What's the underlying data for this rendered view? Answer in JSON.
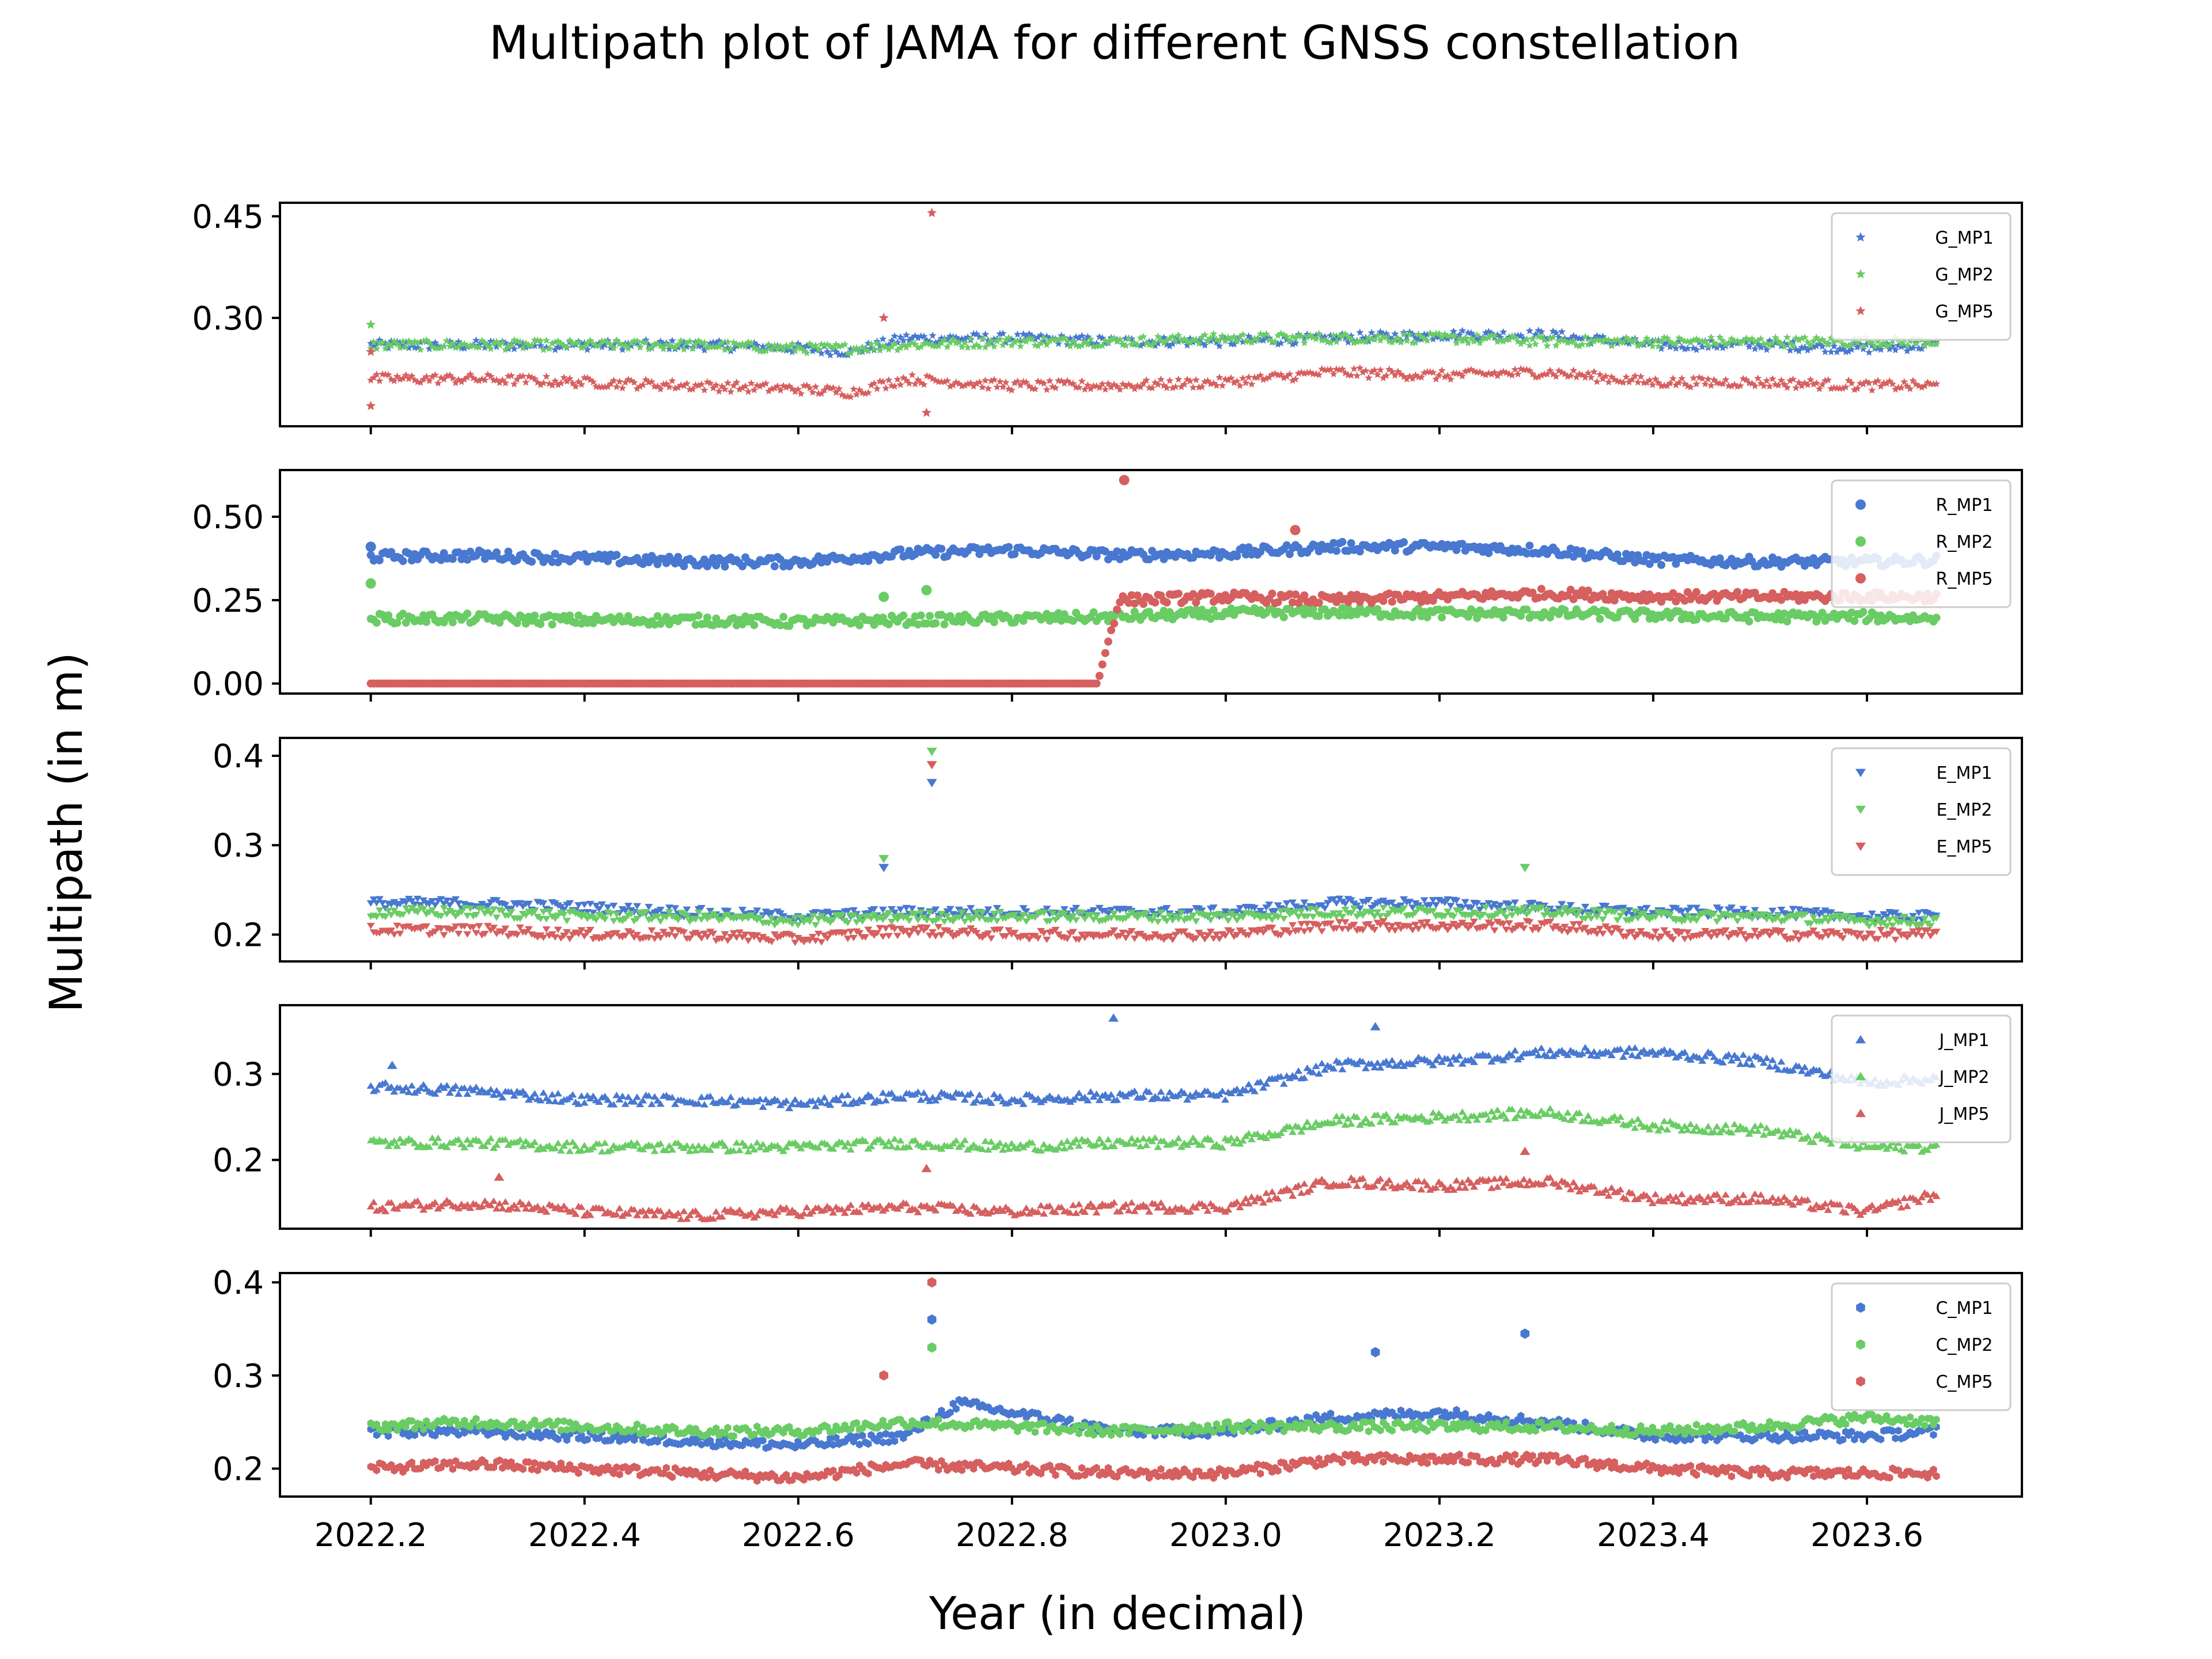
{
  "title": "Multipath plot of JAMA for different GNSS constellation",
  "xlabel": "Year (in decimal)",
  "ylabel": "Multipath (in m)",
  "xlim": [
    2022.115,
    2023.745
  ],
  "xticks": [
    "2022.2",
    "2022.4",
    "2022.6",
    "2022.8",
    "2023.0",
    "2023.2",
    "2023.4",
    "2023.6"
  ],
  "colors": {
    "MP1": "#4878d0",
    "MP2": "#6acc64",
    "MP5": "#d65f5f"
  },
  "chart_data": [
    {
      "type": "scatter",
      "marker": "star",
      "ylim": [
        0.14,
        0.47
      ],
      "yticks": [
        "0.30",
        "0.45"
      ],
      "legend_position": "top-right",
      "series": [
        {
          "name": "G_MP1",
          "color": "#4878d0",
          "x": [
            2022.2,
            2022.3,
            2022.4,
            2022.5,
            2022.6,
            2022.65,
            2022.7,
            2022.8,
            2022.9,
            2023.0,
            2023.1,
            2023.2,
            2023.3,
            2023.4,
            2023.5,
            2023.6,
            2023.665
          ],
          "y": [
            0.26,
            0.26,
            0.26,
            0.26,
            0.255,
            0.25,
            0.27,
            0.27,
            0.265,
            0.265,
            0.27,
            0.275,
            0.275,
            0.26,
            0.26,
            0.255,
            0.26
          ]
        },
        {
          "name": "G_MP2",
          "color": "#6acc64",
          "x": [
            2022.2,
            2022.3,
            2022.4,
            2022.5,
            2022.6,
            2022.65,
            2022.7,
            2022.8,
            2022.9,
            2023.0,
            2023.1,
            2023.2,
            2023.3,
            2023.4,
            2023.5,
            2023.6,
            2023.665
          ],
          "y": [
            0.26,
            0.26,
            0.26,
            0.26,
            0.255,
            0.255,
            0.26,
            0.265,
            0.265,
            0.27,
            0.27,
            0.27,
            0.265,
            0.265,
            0.265,
            0.265,
            0.265
          ]
        },
        {
          "name": "G_MP5",
          "color": "#d65f5f",
          "x": [
            2022.2,
            2022.3,
            2022.4,
            2022.5,
            2022.6,
            2022.65,
            2022.7,
            2022.8,
            2022.9,
            2023.0,
            2023.1,
            2023.2,
            2023.3,
            2023.4,
            2023.5,
            2023.6,
            2023.665
          ],
          "y": [
            0.21,
            0.21,
            0.205,
            0.2,
            0.195,
            0.19,
            0.21,
            0.2,
            0.2,
            0.205,
            0.22,
            0.215,
            0.22,
            0.205,
            0.205,
            0.2,
            0.2
          ]
        }
      ],
      "outliers": [
        {
          "series": "G_MP5",
          "x": 2022.725,
          "y": 0.455
        },
        {
          "series": "G_MP5",
          "x": 2022.68,
          "y": 0.3
        },
        {
          "series": "G_MP2",
          "x": 2022.2,
          "y": 0.29
        },
        {
          "series": "G_MP5",
          "x": 2022.72,
          "y": 0.16
        },
        {
          "series": "G_MP5",
          "x": 2022.2,
          "y": 0.25
        },
        {
          "series": "G_MP5",
          "x": 2022.2,
          "y": 0.17
        }
      ]
    },
    {
      "type": "scatter",
      "marker": "circle",
      "ylim": [
        -0.03,
        0.64
      ],
      "yticks": [
        "0.00",
        "0.25",
        "0.50"
      ],
      "legend_position": "top-right",
      "series": [
        {
          "name": "R_MP1",
          "color": "#4878d0",
          "x": [
            2022.2,
            2022.3,
            2022.4,
            2022.5,
            2022.6,
            2022.7,
            2022.8,
            2022.9,
            2023.0,
            2023.1,
            2023.2,
            2023.3,
            2023.4,
            2023.5,
            2023.6,
            2023.665
          ],
          "y": [
            0.38,
            0.385,
            0.375,
            0.365,
            0.365,
            0.39,
            0.4,
            0.385,
            0.39,
            0.41,
            0.41,
            0.4,
            0.37,
            0.365,
            0.365,
            0.37
          ]
        },
        {
          "name": "R_MP2",
          "color": "#6acc64",
          "x": [
            2022.2,
            2022.3,
            2022.4,
            2022.5,
            2022.6,
            2022.7,
            2022.8,
            2022.9,
            2023.0,
            2023.1,
            2023.2,
            2023.3,
            2023.4,
            2023.5,
            2023.6,
            2023.665
          ],
          "y": [
            0.195,
            0.195,
            0.19,
            0.19,
            0.185,
            0.19,
            0.195,
            0.2,
            0.21,
            0.215,
            0.21,
            0.21,
            0.205,
            0.2,
            0.2,
            0.195
          ]
        },
        {
          "name": "R_MP5",
          "color": "#d65f5f",
          "x": [
            2022.2,
            2022.4,
            2022.6,
            2022.8,
            2022.88,
            2022.9,
            2023.0,
            2023.1,
            2023.2,
            2023.3,
            2023.4,
            2023.5,
            2023.6,
            2023.665
          ],
          "y": [
            0.0,
            0.0,
            0.0,
            0.0,
            0.0,
            0.25,
            0.26,
            0.25,
            0.26,
            0.27,
            0.26,
            0.26,
            0.26,
            0.26
          ]
        }
      ],
      "outliers": [
        {
          "series": "R_MP5",
          "x": 2022.905,
          "y": 0.61
        },
        {
          "series": "R_MP5",
          "x": 2023.065,
          "y": 0.46
        },
        {
          "series": "R_MP1",
          "x": 2022.2,
          "y": 0.41
        },
        {
          "series": "R_MP2",
          "x": 2022.2,
          "y": 0.3
        },
        {
          "series": "R_MP2",
          "x": 2022.68,
          "y": 0.26
        },
        {
          "series": "R_MP2",
          "x": 2022.72,
          "y": 0.28
        }
      ]
    },
    {
      "type": "scatter",
      "marker": "triangle-down",
      "ylim": [
        0.17,
        0.42
      ],
      "yticks": [
        "0.2",
        "0.3",
        "0.4"
      ],
      "legend_position": "top-right",
      "series": [
        {
          "name": "E_MP1",
          "color": "#4878d0",
          "x": [
            2022.2,
            2022.3,
            2022.4,
            2022.5,
            2022.6,
            2022.7,
            2022.8,
            2022.9,
            2023.0,
            2023.1,
            2023.2,
            2023.3,
            2023.4,
            2023.5,
            2023.6,
            2023.665
          ],
          "y": [
            0.235,
            0.235,
            0.23,
            0.225,
            0.22,
            0.225,
            0.225,
            0.225,
            0.225,
            0.235,
            0.235,
            0.23,
            0.225,
            0.225,
            0.22,
            0.22
          ]
        },
        {
          "name": "E_MP2",
          "color": "#6acc64",
          "x": [
            2022.2,
            2022.3,
            2022.4,
            2022.5,
            2022.6,
            2022.7,
            2022.8,
            2022.9,
            2023.0,
            2023.1,
            2023.2,
            2023.3,
            2023.4,
            2023.5,
            2023.6,
            2023.665
          ],
          "y": [
            0.225,
            0.225,
            0.22,
            0.22,
            0.215,
            0.22,
            0.22,
            0.22,
            0.22,
            0.225,
            0.225,
            0.225,
            0.22,
            0.22,
            0.215,
            0.215
          ]
        },
        {
          "name": "E_MP5",
          "color": "#d65f5f",
          "x": [
            2022.2,
            2022.3,
            2022.4,
            2022.5,
            2022.6,
            2022.7,
            2022.8,
            2022.9,
            2023.0,
            2023.1,
            2023.2,
            2023.3,
            2023.4,
            2023.5,
            2023.6,
            2023.665
          ],
          "y": [
            0.205,
            0.205,
            0.2,
            0.2,
            0.195,
            0.205,
            0.2,
            0.2,
            0.2,
            0.21,
            0.21,
            0.21,
            0.2,
            0.2,
            0.2,
            0.2
          ]
        }
      ],
      "outliers": [
        {
          "series": "E_MP2",
          "x": 2022.725,
          "y": 0.405
        },
        {
          "series": "E_MP5",
          "x": 2022.725,
          "y": 0.39
        },
        {
          "series": "E_MP1",
          "x": 2022.725,
          "y": 0.37
        },
        {
          "series": "E_MP2",
          "x": 2022.68,
          "y": 0.285
        },
        {
          "series": "E_MP1",
          "x": 2022.68,
          "y": 0.275
        },
        {
          "series": "E_MP2",
          "x": 2023.28,
          "y": 0.275
        }
      ]
    },
    {
      "type": "scatter",
      "marker": "triangle-up",
      "ylim": [
        0.12,
        0.38
      ],
      "yticks": [
        "0.2",
        "0.3"
      ],
      "legend_position": "top-right",
      "series": [
        {
          "name": "J_MP1",
          "color": "#4878d0",
          "x": [
            2022.2,
            2022.3,
            2022.4,
            2022.5,
            2022.6,
            2022.7,
            2022.8,
            2022.9,
            2023.0,
            2023.1,
            2023.2,
            2023.3,
            2023.4,
            2023.5,
            2023.6,
            2023.665
          ],
          "y": [
            0.285,
            0.28,
            0.27,
            0.27,
            0.265,
            0.275,
            0.27,
            0.275,
            0.275,
            0.31,
            0.315,
            0.325,
            0.325,
            0.315,
            0.29,
            0.295
          ]
        },
        {
          "name": "J_MP2",
          "color": "#6acc64",
          "x": [
            2022.2,
            2022.3,
            2022.4,
            2022.5,
            2022.6,
            2022.7,
            2022.8,
            2022.9,
            2023.0,
            2023.1,
            2023.2,
            2023.3,
            2023.4,
            2023.5,
            2023.6,
            2023.665
          ],
          "y": [
            0.22,
            0.22,
            0.215,
            0.215,
            0.215,
            0.22,
            0.215,
            0.22,
            0.22,
            0.245,
            0.25,
            0.255,
            0.24,
            0.235,
            0.215,
            0.215
          ]
        },
        {
          "name": "J_MP5",
          "color": "#d65f5f",
          "x": [
            2022.2,
            2022.3,
            2022.4,
            2022.5,
            2022.6,
            2022.7,
            2022.8,
            2022.9,
            2023.0,
            2023.1,
            2023.2,
            2023.3,
            2023.4,
            2023.5,
            2023.6,
            2023.665
          ],
          "y": [
            0.145,
            0.15,
            0.14,
            0.135,
            0.14,
            0.145,
            0.14,
            0.145,
            0.145,
            0.175,
            0.17,
            0.175,
            0.155,
            0.155,
            0.14,
            0.16
          ]
        }
      ],
      "outliers": [
        {
          "series": "J_MP1",
          "x": 2022.895,
          "y": 0.365
        },
        {
          "series": "J_MP1",
          "x": 2023.14,
          "y": 0.355
        },
        {
          "series": "J_MP5",
          "x": 2022.32,
          "y": 0.18
        },
        {
          "series": "J_MP5",
          "x": 2022.72,
          "y": 0.19
        },
        {
          "series": "J_MP5",
          "x": 2023.28,
          "y": 0.21
        },
        {
          "series": "J_MP1",
          "x": 2022.22,
          "y": 0.31
        }
      ]
    },
    {
      "type": "scatter",
      "marker": "hexagon",
      "ylim": [
        0.17,
        0.41
      ],
      "yticks": [
        "0.2",
        "0.3",
        "0.4"
      ],
      "legend_position": "top-right",
      "series": [
        {
          "name": "C_MP1",
          "color": "#4878d0",
          "x": [
            2022.2,
            2022.3,
            2022.4,
            2022.5,
            2022.6,
            2022.7,
            2022.75,
            2022.8,
            2022.9,
            2023.0,
            2023.1,
            2023.2,
            2023.3,
            2023.4,
            2023.5,
            2023.6,
            2023.665
          ],
          "y": [
            0.24,
            0.24,
            0.235,
            0.23,
            0.225,
            0.235,
            0.27,
            0.26,
            0.24,
            0.24,
            0.255,
            0.26,
            0.25,
            0.235,
            0.235,
            0.235,
            0.24
          ]
        },
        {
          "name": "C_MP2",
          "color": "#6acc64",
          "x": [
            2022.2,
            2022.3,
            2022.4,
            2022.5,
            2022.6,
            2022.7,
            2022.8,
            2022.9,
            2023.0,
            2023.1,
            2023.2,
            2023.3,
            2023.4,
            2023.5,
            2023.6,
            2023.665
          ],
          "y": [
            0.245,
            0.25,
            0.245,
            0.24,
            0.24,
            0.25,
            0.245,
            0.24,
            0.245,
            0.245,
            0.245,
            0.245,
            0.24,
            0.245,
            0.255,
            0.25
          ]
        },
        {
          "name": "C_MP5",
          "color": "#d65f5f",
          "x": [
            2022.2,
            2022.3,
            2022.4,
            2022.5,
            2022.6,
            2022.7,
            2022.8,
            2022.9,
            2023.0,
            2023.1,
            2023.2,
            2023.3,
            2023.4,
            2023.5,
            2023.6,
            2023.665
          ],
          "y": [
            0.2,
            0.205,
            0.2,
            0.195,
            0.19,
            0.205,
            0.2,
            0.195,
            0.195,
            0.21,
            0.21,
            0.21,
            0.2,
            0.195,
            0.195,
            0.195
          ]
        }
      ],
      "outliers": [
        {
          "series": "C_MP5",
          "x": 2022.725,
          "y": 0.4
        },
        {
          "series": "C_MP1",
          "x": 2022.725,
          "y": 0.36
        },
        {
          "series": "C_MP2",
          "x": 2022.725,
          "y": 0.33
        },
        {
          "series": "C_MP1",
          "x": 2023.28,
          "y": 0.345
        },
        {
          "series": "C_MP1",
          "x": 2023.14,
          "y": 0.325
        },
        {
          "series": "C_MP5",
          "x": 2022.68,
          "y": 0.3
        }
      ]
    }
  ]
}
